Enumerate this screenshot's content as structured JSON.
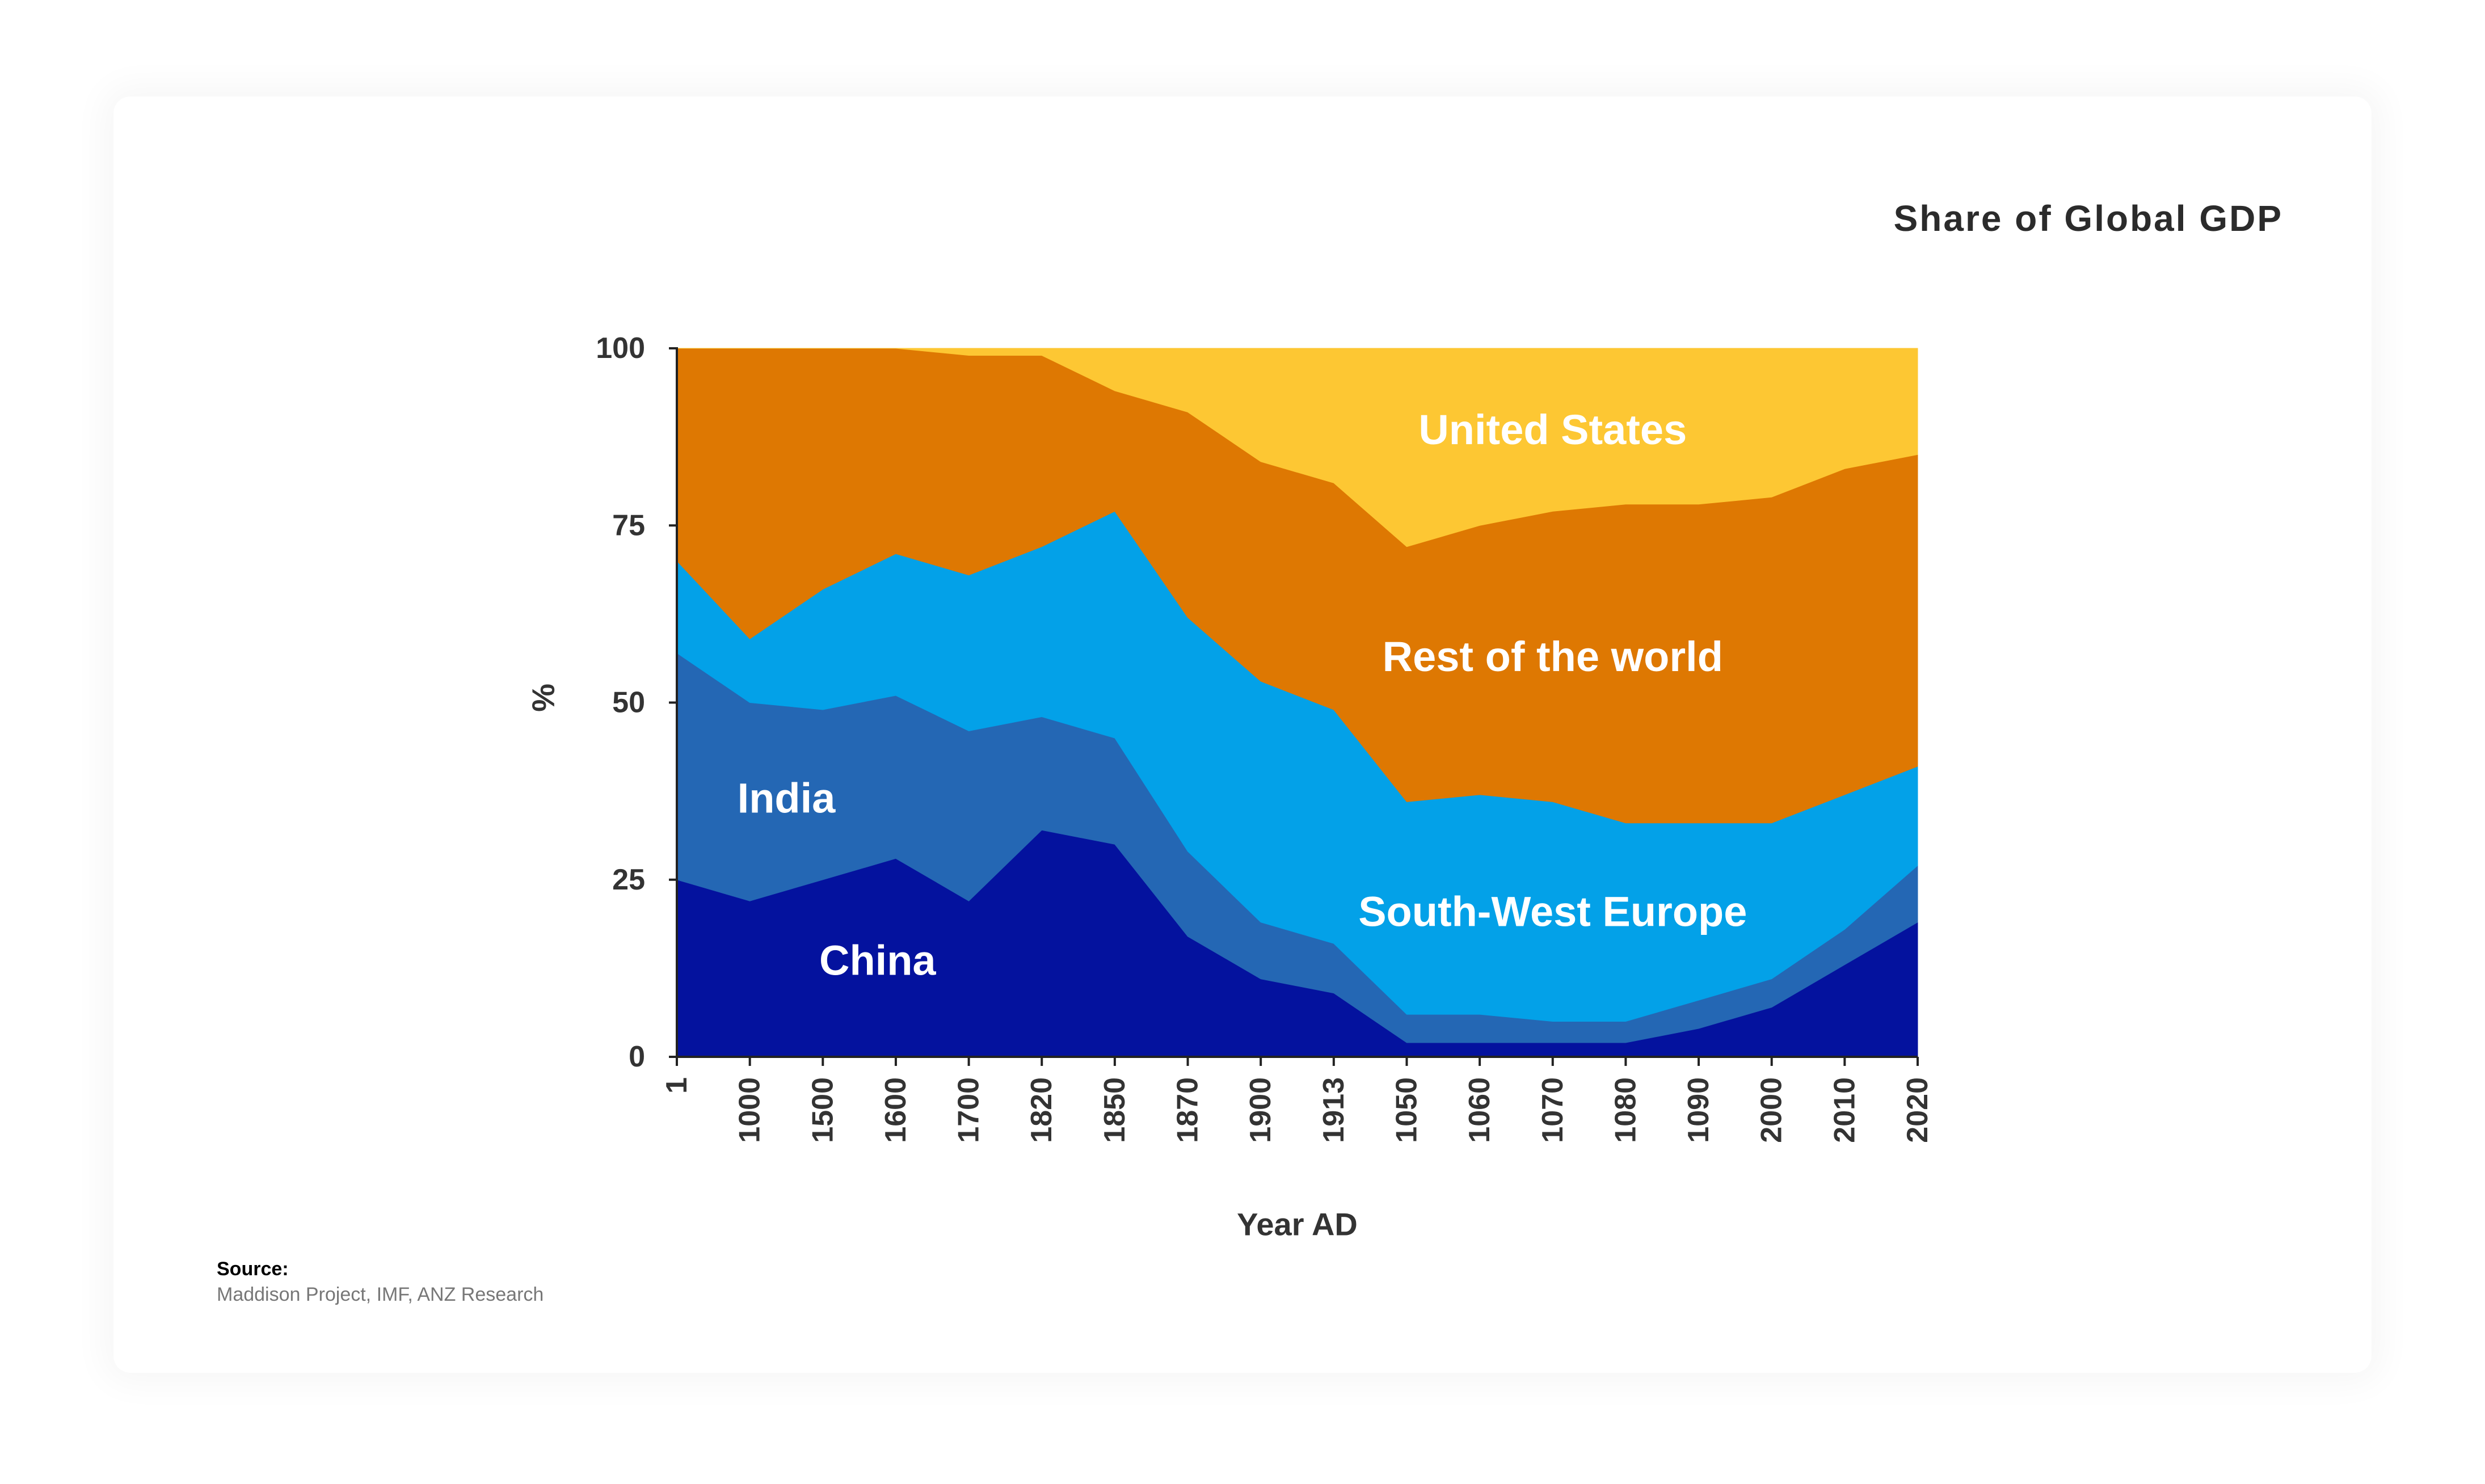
{
  "title": "Share of Global GDP",
  "source": {
    "heading": "Source:",
    "text": "Maddison Project, IMF, ANZ Research"
  },
  "chart_data": {
    "type": "area",
    "stacked": true,
    "title": "Share of Global GDP",
    "xlabel": "Year AD",
    "ylabel": "%",
    "ylim": [
      0,
      100
    ],
    "yticks": [
      0,
      25,
      50,
      75,
      100
    ],
    "categories": [
      "1",
      "1000",
      "1500",
      "1600",
      "1700",
      "1820",
      "1850",
      "1870",
      "1900",
      "1913",
      "1050",
      "1060",
      "1070",
      "1080",
      "1090",
      "2000",
      "2010",
      "2020"
    ],
    "series": [
      {
        "name": "China",
        "color": "#04129e",
        "values": [
          25,
          22,
          25,
          28,
          22,
          32,
          30,
          17,
          11,
          9,
          2,
          2,
          2,
          2,
          4,
          7,
          13,
          19
        ]
      },
      {
        "name": "India",
        "color": "#2467b4",
        "values": [
          32,
          28,
          24,
          23,
          24,
          16,
          15,
          12,
          8,
          7,
          4,
          4,
          3,
          3,
          4,
          4,
          5,
          8
        ]
      },
      {
        "name": "South-West Europe",
        "color": "#03a1e8",
        "values": [
          13,
          9,
          17,
          20,
          22,
          24,
          32,
          33,
          34,
          33,
          30,
          31,
          31,
          28,
          25,
          22,
          19,
          14
        ]
      },
      {
        "name": "Rest of the world",
        "color": "#de7802",
        "values": [
          30,
          41,
          34,
          29,
          31,
          27,
          17,
          29,
          31,
          32,
          36,
          38,
          41,
          45,
          45,
          46,
          46,
          44
        ]
      },
      {
        "name": "United States",
        "color": "#fdc733",
        "values": [
          0,
          0,
          0,
          0,
          1,
          1,
          6,
          9,
          16,
          19,
          28,
          25,
          23,
          22,
          22,
          21,
          17,
          15
        ]
      }
    ]
  }
}
